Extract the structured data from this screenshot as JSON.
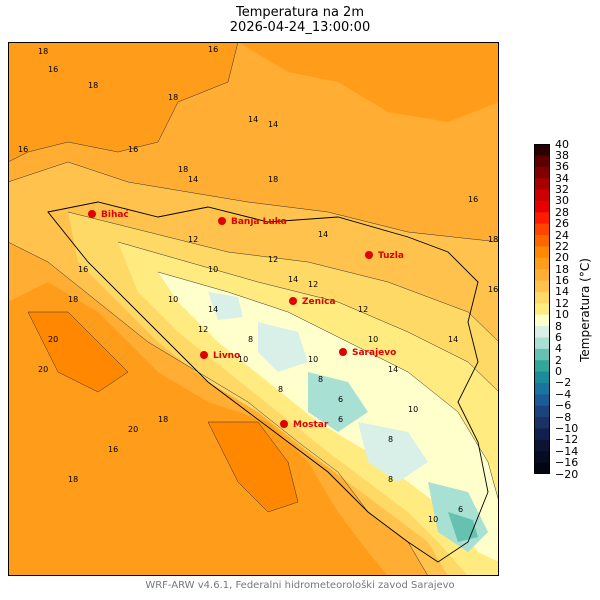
{
  "title_line1": "Temperatura na 2m",
  "title_line2": "2026-04-24_13:00:00",
  "footer": "WRF-ARW v4.6.1, Federalni hidrometeorološki zavod Sarajevo",
  "colorbar": {
    "label": "Temperatura (°C)",
    "ticks": [
      40,
      38,
      36,
      34,
      32,
      30,
      28,
      26,
      24,
      22,
      20,
      18,
      16,
      14,
      12,
      10,
      8,
      6,
      4,
      2,
      0,
      -2,
      -4,
      -6,
      -8,
      -10,
      -12,
      -14,
      -16,
      -20
    ],
    "colors": {
      "40": "#2a0000",
      "38": "#5a0000",
      "36": "#800000",
      "34": "#a80000",
      "32": "#cc0000",
      "30": "#e60000",
      "28": "#ff1a00",
      "26": "#ff4400",
      "24": "#ff6600",
      "22": "#ff8800",
      "20": "#ff9d1a",
      "18": "#ffad33",
      "16": "#ffc24d",
      "14": "#ffd966",
      "12": "#ffeb80",
      "10": "#ffffcc",
      "8": "#d8f0e8",
      "6": "#a8e0d4",
      "4": "#66c2b0",
      "2": "#33a69a",
      "0": "#1a8c9a",
      "-2": "#1a74a0",
      "-4": "#1a5c96",
      "-6": "#1a4480",
      "-8": "#1a3066",
      "-10": "#121f4d",
      "-12": "#0c1433",
      "-14": "#070c22",
      "-16": "#030612",
      "-20": "#000000"
    }
  },
  "cities": [
    {
      "name": "Bihać"
    },
    {
      "name": "Banja Luka"
    },
    {
      "name": "Tuzla"
    },
    {
      "name": "Zenica"
    },
    {
      "name": "Livno"
    },
    {
      "name": "Sarajevo"
    },
    {
      "name": "Mostar"
    }
  ],
  "contour_labels": [
    "18",
    "16",
    "18",
    "18",
    "16",
    "18",
    "14",
    "14",
    "16",
    "16",
    "14",
    "18",
    "14",
    "16",
    "12",
    "10",
    "12",
    "14",
    "12",
    "10",
    "8",
    "12",
    "10",
    "14",
    "10",
    "8",
    "6",
    "10",
    "8",
    "6",
    "16",
    "18",
    "20",
    "20",
    "18",
    "16",
    "18",
    "14",
    "12",
    "10",
    "8",
    "6",
    "8",
    "10",
    "14",
    "16",
    "18",
    "20"
  ]
}
